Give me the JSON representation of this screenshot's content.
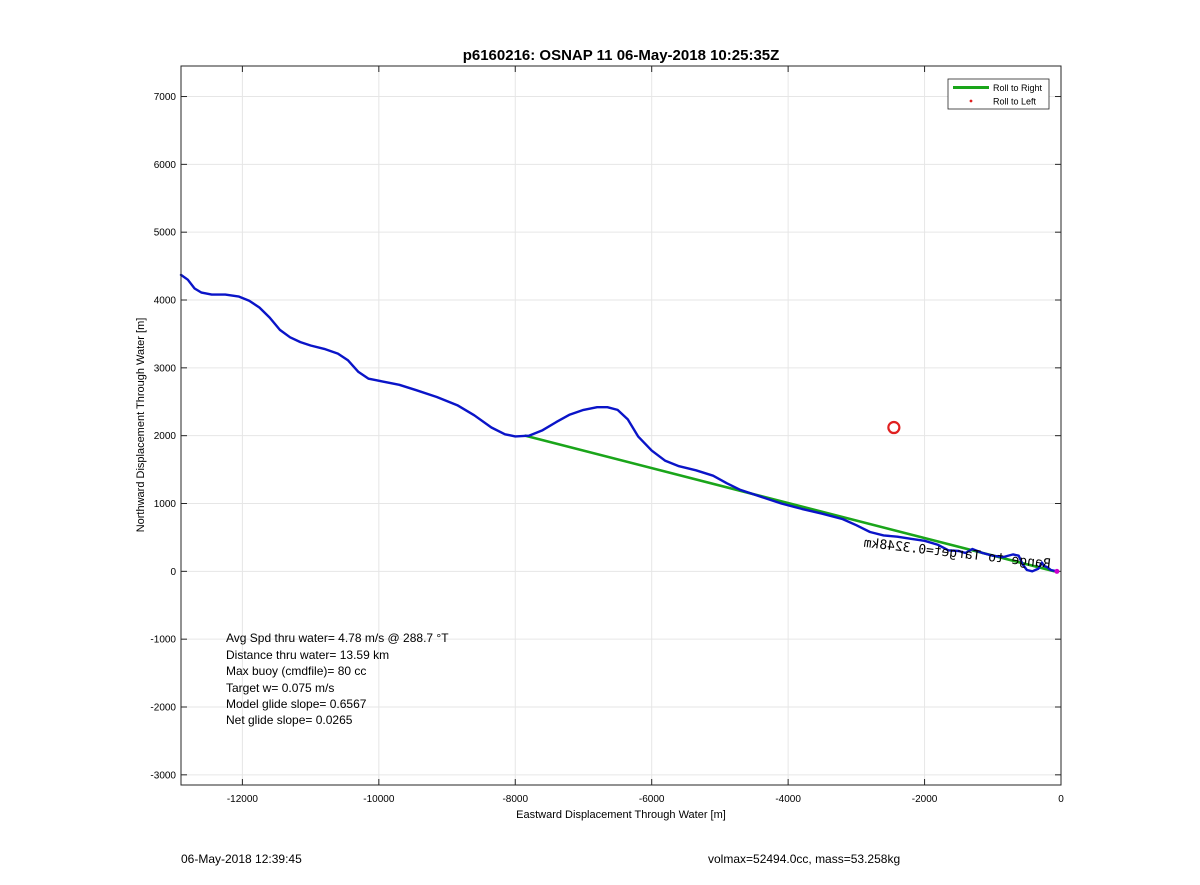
{
  "chart_data": {
    "type": "line",
    "title": "p6160216: OSNAP 11 06-May-2018 10:25:35Z",
    "xlabel": "Eastward Displacement Through Water [m]",
    "ylabel": "Northward Displacement Through Water [m]",
    "xlim": [
      -12900,
      0
    ],
    "ylim": [
      -3150,
      7450
    ],
    "xticks": [
      -12000,
      -10000,
      -8000,
      -6000,
      -4000,
      -2000,
      0
    ],
    "yticks": [
      -3000,
      -2000,
      -1000,
      0,
      1000,
      2000,
      3000,
      4000,
      5000,
      6000,
      7000
    ],
    "grid": true,
    "legend_position": "top-right",
    "legend": [
      {
        "label": "Roll to Right",
        "color": "#1aa51a",
        "style": "line"
      },
      {
        "label": "Roll to Left",
        "color": "#e02020",
        "style": "dot"
      }
    ],
    "series": [
      {
        "name": "Roll to Right",
        "color": "#1aa51a",
        "points": [
          [
            -7850,
            2000
          ],
          [
            -100,
            0
          ]
        ]
      },
      {
        "color": "#0a14c8",
        "points": [
          [
            -12900,
            4370
          ],
          [
            -12800,
            4300
          ],
          [
            -12700,
            4170
          ],
          [
            -12600,
            4110
          ],
          [
            -12450,
            4080
          ],
          [
            -12250,
            4080
          ],
          [
            -12050,
            4050
          ],
          [
            -11900,
            3990
          ],
          [
            -11750,
            3890
          ],
          [
            -11600,
            3740
          ],
          [
            -11450,
            3560
          ],
          [
            -11300,
            3450
          ],
          [
            -11150,
            3380
          ],
          [
            -11000,
            3330
          ],
          [
            -10800,
            3280
          ],
          [
            -10600,
            3210
          ],
          [
            -10450,
            3110
          ],
          [
            -10300,
            2940
          ],
          [
            -10150,
            2840
          ],
          [
            -9950,
            2800
          ],
          [
            -9700,
            2750
          ],
          [
            -9450,
            2670
          ],
          [
            -9150,
            2570
          ],
          [
            -8850,
            2450
          ],
          [
            -8600,
            2300
          ],
          [
            -8350,
            2120
          ],
          [
            -8150,
            2020
          ],
          [
            -8000,
            1990
          ],
          [
            -7800,
            2000
          ],
          [
            -7600,
            2080
          ],
          [
            -7400,
            2200
          ],
          [
            -7200,
            2310
          ],
          [
            -7000,
            2380
          ],
          [
            -6800,
            2420
          ],
          [
            -6650,
            2420
          ],
          [
            -6500,
            2380
          ],
          [
            -6350,
            2240
          ],
          [
            -6200,
            1990
          ],
          [
            -6000,
            1780
          ],
          [
            -5800,
            1630
          ],
          [
            -5600,
            1550
          ],
          [
            -5350,
            1490
          ],
          [
            -5100,
            1410
          ],
          [
            -4900,
            1300
          ],
          [
            -4700,
            1200
          ],
          [
            -4400,
            1100
          ],
          [
            -4100,
            1000
          ],
          [
            -3800,
            920
          ],
          [
            -3500,
            850
          ],
          [
            -3200,
            770
          ],
          [
            -3000,
            680
          ],
          [
            -2800,
            580
          ],
          [
            -2600,
            530
          ],
          [
            -2400,
            510
          ],
          [
            -2200,
            480
          ],
          [
            -2000,
            450
          ],
          [
            -1800,
            390
          ],
          [
            -1650,
            310
          ],
          [
            -1500,
            300
          ],
          [
            -1400,
            270
          ],
          [
            -1300,
            330
          ],
          [
            -1150,
            270
          ],
          [
            -1000,
            230
          ],
          [
            -850,
            210
          ],
          [
            -700,
            250
          ],
          [
            -620,
            230
          ],
          [
            -560,
            100
          ],
          [
            -500,
            20
          ],
          [
            -420,
            0
          ],
          [
            -330,
            40
          ],
          [
            -280,
            130
          ],
          [
            -250,
            80
          ],
          [
            -200,
            60
          ],
          [
            -150,
            20
          ],
          [
            -60,
            0
          ]
        ]
      }
    ],
    "markers": [
      {
        "label": "Roll to Left",
        "color": "#e02020",
        "points": [
          [
            -2450,
            2120
          ]
        ]
      },
      {
        "color": "#cc00cc",
        "points": [
          [
            -60,
            0
          ]
        ]
      }
    ],
    "annotations": [
      "Avg Spd thru water=  4.78 m/s @ 288.7 °T",
      "Distance thru water= 13.59 km",
      "Max buoy (cmdfile)= 80 cc",
      "Target w= 0.075 m/s",
      "Model glide slope= 0.6567",
      "Net glide slope= 0.0265"
    ],
    "rotated_label": "Range to Target=0.3248km"
  },
  "footer": {
    "timestamp": "06-May-2018 12:39:45",
    "mass_info": "volmax=52494.0cc, mass=53.258kg"
  }
}
